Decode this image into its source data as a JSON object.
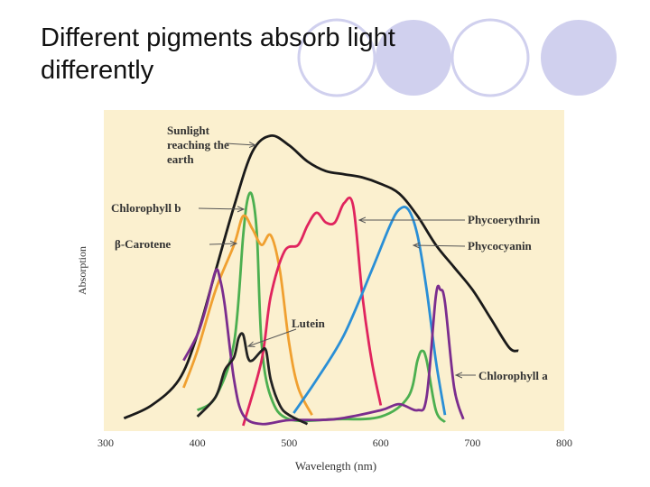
{
  "title": "Different pigments absorb light differently",
  "chart_data": {
    "type": "line",
    "xlabel": "Wavelength (nm)",
    "ylabel": "Absorption",
    "xlim": [
      300,
      800
    ],
    "xticks": [
      300,
      400,
      500,
      600,
      700,
      800
    ],
    "ylim": [
      0,
      100
    ],
    "grid": false,
    "series": [
      {
        "name": "Sunlight reaching the earth",
        "color": "#1a1a1a",
        "x": [
          320,
          350,
          380,
          400,
          420,
          440,
          460,
          480,
          500,
          520,
          540,
          560,
          580,
          600,
          620,
          640,
          660,
          680,
          700,
          720,
          740,
          750
        ],
        "values": [
          4,
          8,
          16,
          30,
          50,
          70,
          87,
          92,
          89,
          84,
          81,
          80,
          79,
          77,
          74,
          67,
          58,
          51,
          44,
          35,
          26,
          25
        ]
      },
      {
        "name": "Chlorophyll b",
        "color": "#4caf50",
        "x": [
          400,
          420,
          440,
          450,
          455,
          460,
          465,
          470,
          480,
          500,
          550,
          600,
          630,
          640,
          645,
          650,
          660,
          670
        ],
        "values": [
          6.5,
          10.7,
          27.5,
          61,
          72.5,
          73,
          61,
          27.5,
          10.7,
          3.7,
          3.7,
          4.5,
          10.7,
          22,
          25,
          22,
          6.5,
          2.8
        ]
      },
      {
        "name": "β-Carotene",
        "color": "#f0a030",
        "x": [
          385,
          400,
          420,
          440,
          450,
          460,
          470,
          480,
          490,
          500,
          510,
          525
        ],
        "values": [
          13.5,
          25,
          44,
          58,
          67,
          63,
          58,
          61,
          50,
          27.5,
          13.5,
          5
        ]
      },
      {
        "name": "Phycoerythrin",
        "color": "#e0245e",
        "x": [
          450,
          470,
          480,
          495,
          510,
          520,
          530,
          540,
          550,
          560,
          570,
          580,
          590,
          600
        ],
        "values": [
          1.7,
          22,
          42,
          56,
          58,
          64,
          68,
          65,
          65,
          71,
          70,
          42,
          22,
          8
        ]
      },
      {
        "name": "Phycocyanin",
        "color": "#2a8fd6",
        "x": [
          505,
          530,
          560,
          590,
          610,
          620,
          630,
          640,
          650,
          660,
          670
        ],
        "values": [
          5.6,
          16,
          30,
          50,
          64,
          69,
          69,
          61,
          44,
          22,
          5
        ]
      },
      {
        "name": "Chlorophyll a",
        "color": "#7b2d8e",
        "x": [
          385,
          400,
          410,
          420,
          425,
          430,
          440,
          450,
          470,
          500,
          550,
          600,
          620,
          640,
          650,
          660,
          665,
          670,
          680,
          690
        ],
        "values": [
          22,
          30,
          39,
          50,
          47,
          39,
          16,
          5,
          2.2,
          3.4,
          3.7,
          6.5,
          8.4,
          6.5,
          10.7,
          42,
          44,
          40,
          13.5,
          3.7
        ]
      },
      {
        "name": "Lutein",
        "color": "#222222",
        "x": [
          400,
          420,
          430,
          440,
          445,
          450,
          455,
          460,
          470,
          475,
          480,
          490,
          500,
          520
        ],
        "values": [
          4.5,
          10.7,
          19,
          23,
          29,
          30,
          23,
          22,
          25,
          25,
          16,
          8,
          5,
          2.2
        ]
      }
    ]
  }
}
